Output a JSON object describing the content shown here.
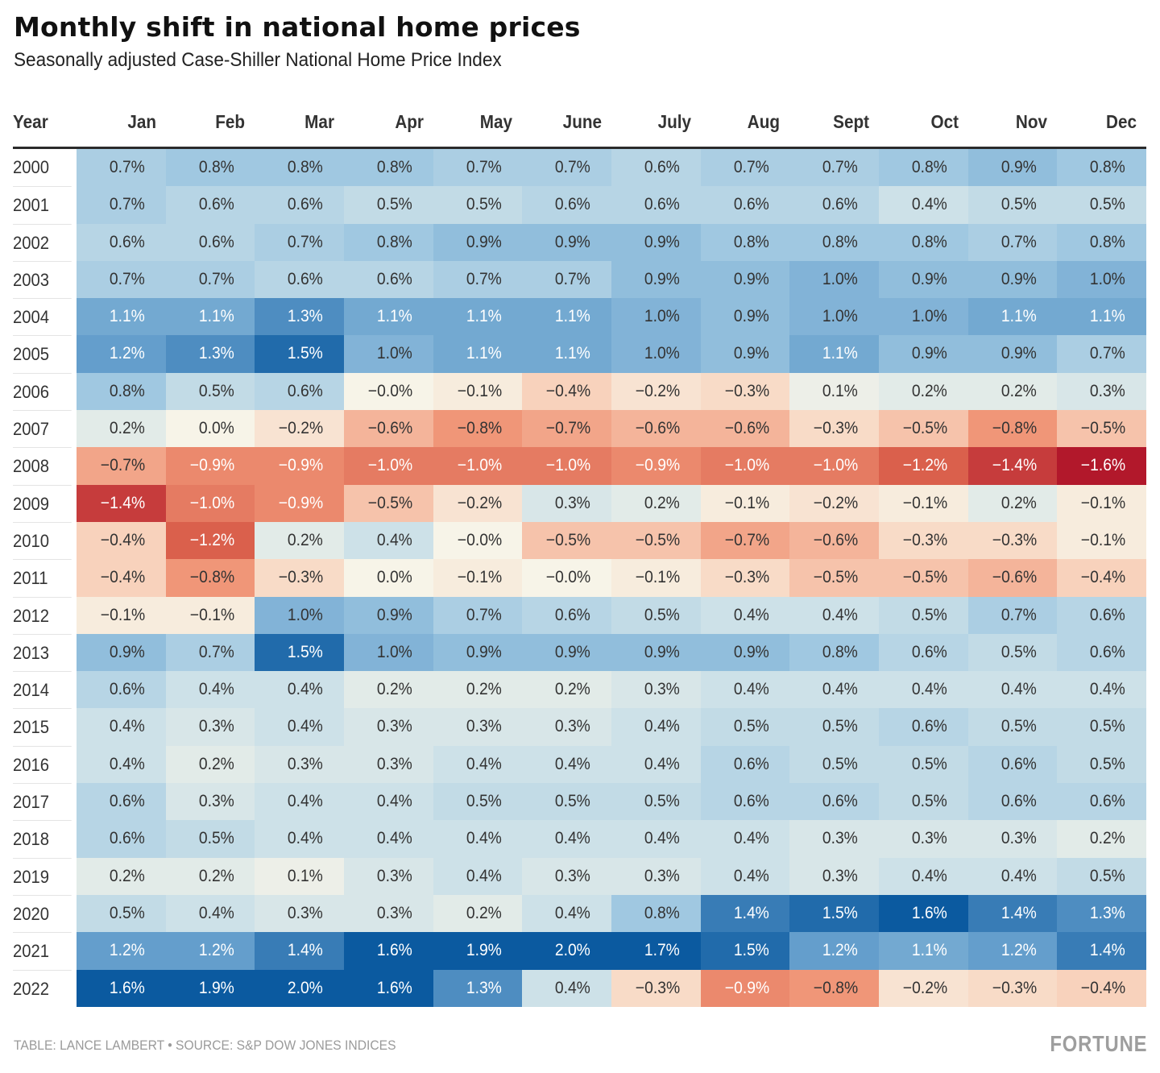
{
  "chart_data": {
    "type": "heatmap",
    "title": "Monthly shift in national home prices",
    "subtitle": "Seasonally adjusted Case-Shiller National Home Price Index",
    "row_header": "Year",
    "columns": [
      "Jan",
      "Feb",
      "Mar",
      "Apr",
      "May",
      "June",
      "July",
      "Aug",
      "Sept",
      "Oct",
      "Nov",
      "Dec"
    ],
    "unit": "%",
    "color_scale": {
      "negative": "#b2182b",
      "neutral": "#f7f4e8",
      "positive": "#0b5aa0",
      "min": -1.6,
      "max": 1.6
    },
    "rows": [
      {
        "year": "2000",
        "labels": [
          "0.7%",
          "0.8%",
          "0.8%",
          "0.8%",
          "0.7%",
          "0.7%",
          "0.6%",
          "0.7%",
          "0.7%",
          "0.8%",
          "0.9%",
          "0.8%"
        ],
        "values": [
          0.7,
          0.8,
          0.8,
          0.8,
          0.7,
          0.7,
          0.6,
          0.7,
          0.7,
          0.8,
          0.9,
          0.8
        ]
      },
      {
        "year": "2001",
        "labels": [
          "0.7%",
          "0.6%",
          "0.6%",
          "0.5%",
          "0.5%",
          "0.6%",
          "0.6%",
          "0.6%",
          "0.6%",
          "0.4%",
          "0.5%",
          "0.5%"
        ],
        "values": [
          0.7,
          0.6,
          0.6,
          0.5,
          0.5,
          0.6,
          0.6,
          0.6,
          0.6,
          0.4,
          0.5,
          0.5
        ]
      },
      {
        "year": "2002",
        "labels": [
          "0.6%",
          "0.6%",
          "0.7%",
          "0.8%",
          "0.9%",
          "0.9%",
          "0.9%",
          "0.8%",
          "0.8%",
          "0.8%",
          "0.7%",
          "0.8%"
        ],
        "values": [
          0.6,
          0.6,
          0.7,
          0.8,
          0.9,
          0.9,
          0.9,
          0.8,
          0.8,
          0.8,
          0.7,
          0.8
        ]
      },
      {
        "year": "2003",
        "labels": [
          "0.7%",
          "0.7%",
          "0.6%",
          "0.6%",
          "0.7%",
          "0.7%",
          "0.9%",
          "0.9%",
          "1.0%",
          "0.9%",
          "0.9%",
          "1.0%"
        ],
        "values": [
          0.7,
          0.7,
          0.6,
          0.6,
          0.7,
          0.7,
          0.9,
          0.9,
          1.0,
          0.9,
          0.9,
          1.0
        ]
      },
      {
        "year": "2004",
        "labels": [
          "1.1%",
          "1.1%",
          "1.3%",
          "1.1%",
          "1.1%",
          "1.1%",
          "1.0%",
          "0.9%",
          "1.0%",
          "1.0%",
          "1.1%",
          "1.1%"
        ],
        "values": [
          1.1,
          1.1,
          1.3,
          1.1,
          1.1,
          1.1,
          1.0,
          0.9,
          1.0,
          1.0,
          1.1,
          1.1
        ]
      },
      {
        "year": "2005",
        "labels": [
          "1.2%",
          "1.3%",
          "1.5%",
          "1.0%",
          "1.1%",
          "1.1%",
          "1.0%",
          "0.9%",
          "1.1%",
          "0.9%",
          "0.9%",
          "0.7%"
        ],
        "values": [
          1.2,
          1.3,
          1.5,
          1.0,
          1.1,
          1.1,
          1.0,
          0.9,
          1.1,
          0.9,
          0.9,
          0.7
        ]
      },
      {
        "year": "2006",
        "labels": [
          "0.8%",
          "0.5%",
          "0.6%",
          "-0.0%",
          "-0.1%",
          "-0.4%",
          "-0.2%",
          "-0.3%",
          "0.1%",
          "0.2%",
          "0.2%",
          "0.3%"
        ],
        "values": [
          0.8,
          0.5,
          0.6,
          -0.0,
          -0.1,
          -0.4,
          -0.2,
          -0.3,
          0.1,
          0.2,
          0.2,
          0.3
        ]
      },
      {
        "year": "2007",
        "labels": [
          "0.2%",
          "0.0%",
          "-0.2%",
          "-0.6%",
          "-0.8%",
          "-0.7%",
          "-0.6%",
          "-0.6%",
          "-0.3%",
          "-0.5%",
          "-0.8%",
          "-0.5%"
        ],
        "values": [
          0.2,
          0.0,
          -0.2,
          -0.6,
          -0.8,
          -0.7,
          -0.6,
          -0.6,
          -0.3,
          -0.5,
          -0.8,
          -0.5
        ]
      },
      {
        "year": "2008",
        "labels": [
          "-0.7%",
          "-0.9%",
          "-0.9%",
          "-1.0%",
          "-1.0%",
          "-1.0%",
          "-0.9%",
          "-1.0%",
          "-1.0%",
          "-1.2%",
          "-1.4%",
          "-1.6%"
        ],
        "values": [
          -0.7,
          -0.9,
          -0.9,
          -1.0,
          -1.0,
          -1.0,
          -0.9,
          -1.0,
          -1.0,
          -1.2,
          -1.4,
          -1.6
        ]
      },
      {
        "year": "2009",
        "labels": [
          "-1.4%",
          "-1.0%",
          "-0.9%",
          "-0.5%",
          "-0.2%",
          "0.3%",
          "0.2%",
          "-0.1%",
          "-0.2%",
          "-0.1%",
          "0.2%",
          "-0.1%"
        ],
        "values": [
          -1.4,
          -1.0,
          -0.9,
          -0.5,
          -0.2,
          0.3,
          0.2,
          -0.1,
          -0.2,
          -0.1,
          0.2,
          -0.1
        ]
      },
      {
        "year": "2010",
        "labels": [
          "-0.4%",
          "-1.2%",
          "0.2%",
          "0.4%",
          "-0.0%",
          "-0.5%",
          "-0.5%",
          "-0.7%",
          "-0.6%",
          "-0.3%",
          "-0.3%",
          "-0.1%"
        ],
        "values": [
          -0.4,
          -1.2,
          0.2,
          0.4,
          -0.0,
          -0.5,
          -0.5,
          -0.7,
          -0.6,
          -0.3,
          -0.3,
          -0.1
        ]
      },
      {
        "year": "2011",
        "labels": [
          "-0.4%",
          "-0.8%",
          "-0.3%",
          "0.0%",
          "-0.1%",
          "-0.0%",
          "-0.1%",
          "-0.3%",
          "-0.5%",
          "-0.5%",
          "-0.6%",
          "-0.4%"
        ],
        "values": [
          -0.4,
          -0.8,
          -0.3,
          0.0,
          -0.1,
          -0.0,
          -0.1,
          -0.3,
          -0.5,
          -0.5,
          -0.6,
          -0.4
        ]
      },
      {
        "year": "2012",
        "labels": [
          "-0.1%",
          "-0.1%",
          "1.0%",
          "0.9%",
          "0.7%",
          "0.6%",
          "0.5%",
          "0.4%",
          "0.4%",
          "0.5%",
          "0.7%",
          "0.6%"
        ],
        "values": [
          -0.1,
          -0.1,
          1.0,
          0.9,
          0.7,
          0.6,
          0.5,
          0.4,
          0.4,
          0.5,
          0.7,
          0.6
        ]
      },
      {
        "year": "2013",
        "labels": [
          "0.9%",
          "0.7%",
          "1.5%",
          "1.0%",
          "0.9%",
          "0.9%",
          "0.9%",
          "0.9%",
          "0.8%",
          "0.6%",
          "0.5%",
          "0.6%"
        ],
        "values": [
          0.9,
          0.7,
          1.5,
          1.0,
          0.9,
          0.9,
          0.9,
          0.9,
          0.8,
          0.6,
          0.5,
          0.6
        ]
      },
      {
        "year": "2014",
        "labels": [
          "0.6%",
          "0.4%",
          "0.4%",
          "0.2%",
          "0.2%",
          "0.2%",
          "0.3%",
          "0.4%",
          "0.4%",
          "0.4%",
          "0.4%",
          "0.4%"
        ],
        "values": [
          0.6,
          0.4,
          0.4,
          0.2,
          0.2,
          0.2,
          0.3,
          0.4,
          0.4,
          0.4,
          0.4,
          0.4
        ]
      },
      {
        "year": "2015",
        "labels": [
          "0.4%",
          "0.3%",
          "0.4%",
          "0.3%",
          "0.3%",
          "0.3%",
          "0.4%",
          "0.5%",
          "0.5%",
          "0.6%",
          "0.5%",
          "0.5%"
        ],
        "values": [
          0.4,
          0.3,
          0.4,
          0.3,
          0.3,
          0.3,
          0.4,
          0.5,
          0.5,
          0.6,
          0.5,
          0.5
        ]
      },
      {
        "year": "2016",
        "labels": [
          "0.4%",
          "0.2%",
          "0.3%",
          "0.3%",
          "0.4%",
          "0.4%",
          "0.4%",
          "0.6%",
          "0.5%",
          "0.5%",
          "0.6%",
          "0.5%"
        ],
        "values": [
          0.4,
          0.2,
          0.3,
          0.3,
          0.4,
          0.4,
          0.4,
          0.6,
          0.5,
          0.5,
          0.6,
          0.5
        ]
      },
      {
        "year": "2017",
        "labels": [
          "0.6%",
          "0.3%",
          "0.4%",
          "0.4%",
          "0.5%",
          "0.5%",
          "0.5%",
          "0.6%",
          "0.6%",
          "0.5%",
          "0.6%",
          "0.6%"
        ],
        "values": [
          0.6,
          0.3,
          0.4,
          0.4,
          0.5,
          0.5,
          0.5,
          0.6,
          0.6,
          0.5,
          0.6,
          0.6
        ]
      },
      {
        "year": "2018",
        "labels": [
          "0.6%",
          "0.5%",
          "0.4%",
          "0.4%",
          "0.4%",
          "0.4%",
          "0.4%",
          "0.4%",
          "0.3%",
          "0.3%",
          "0.3%",
          "0.2%"
        ],
        "values": [
          0.6,
          0.5,
          0.4,
          0.4,
          0.4,
          0.4,
          0.4,
          0.4,
          0.3,
          0.3,
          0.3,
          0.2
        ]
      },
      {
        "year": "2019",
        "labels": [
          "0.2%",
          "0.2%",
          "0.1%",
          "0.3%",
          "0.4%",
          "0.3%",
          "0.3%",
          "0.4%",
          "0.3%",
          "0.4%",
          "0.4%",
          "0.5%"
        ],
        "values": [
          0.2,
          0.2,
          0.1,
          0.3,
          0.4,
          0.3,
          0.3,
          0.4,
          0.3,
          0.4,
          0.4,
          0.5
        ]
      },
      {
        "year": "2020",
        "labels": [
          "0.5%",
          "0.4%",
          "0.3%",
          "0.3%",
          "0.2%",
          "0.4%",
          "0.8%",
          "1.4%",
          "1.5%",
          "1.6%",
          "1.4%",
          "1.3%"
        ],
        "values": [
          0.5,
          0.4,
          0.3,
          0.3,
          0.2,
          0.4,
          0.8,
          1.4,
          1.5,
          1.6,
          1.4,
          1.3
        ]
      },
      {
        "year": "2021",
        "labels": [
          "1.2%",
          "1.2%",
          "1.4%",
          "1.6%",
          "1.9%",
          "2.0%",
          "1.7%",
          "1.5%",
          "1.2%",
          "1.1%",
          "1.2%",
          "1.4%"
        ],
        "values": [
          1.2,
          1.2,
          1.4,
          1.6,
          1.9,
          2.0,
          1.7,
          1.5,
          1.2,
          1.1,
          1.2,
          1.4
        ]
      },
      {
        "year": "2022",
        "labels": [
          "1.6%",
          "1.9%",
          "2.0%",
          "1.6%",
          "1.3%",
          "0.4%",
          "-0.3%",
          "-0.9%",
          "-0.8%",
          "-0.2%",
          "-0.3%",
          "-0.4%"
        ],
        "values": [
          1.6,
          1.9,
          2.0,
          1.6,
          1.3,
          0.4,
          -0.3,
          -0.9,
          -0.8,
          -0.2,
          -0.3,
          -0.4
        ]
      }
    ]
  },
  "footer": {
    "credit": "TABLE: LANCE LAMBERT • SOURCE: S&P DOW JONES INDICES",
    "brand": "FORTUNE"
  }
}
